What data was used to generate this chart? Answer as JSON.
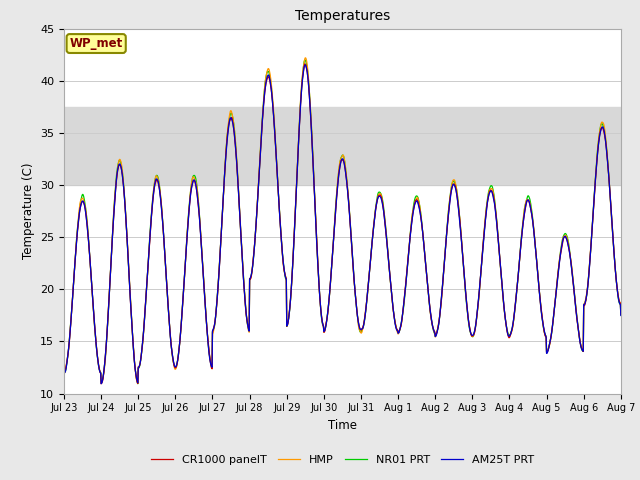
{
  "title": "Temperatures",
  "xlabel": "Time",
  "ylabel": "Temperature (C)",
  "ylim": [
    10,
    45
  ],
  "yticks": [
    10,
    15,
    20,
    25,
    30,
    35,
    40,
    45
  ],
  "series_colors": {
    "CR1000 panelT": "#cc0000",
    "HMP": "#ff9900",
    "NR01 PRT": "#00cc00",
    "AM25T PRT": "#0000cc"
  },
  "series_order": [
    "NR01 PRT",
    "HMP",
    "CR1000 panelT",
    "AM25T PRT"
  ],
  "annotation_text": "WP_met",
  "annotation_color": "#800000",
  "annotation_bg": "#ffff99",
  "shaded_band": [
    30,
    37.5
  ],
  "background_color": "#e8e8e8",
  "plot_bg": "#ffffff",
  "n_days": 16,
  "xtick_labels": [
    "Jul 23",
    "Jul 24",
    "Jul 25",
    "Jul 26",
    "Jul 27",
    "Jul 28",
    "Jul 29",
    "Jul 30",
    "Jul 31",
    "Aug 1",
    "Aug 2",
    "Aug 3",
    "Aug 4",
    "Aug 5",
    "Aug 6",
    "Aug 7"
  ],
  "daily_maxes": [
    28.5,
    32.0,
    30.5,
    30.5,
    36.5,
    40.5,
    41.5,
    32.5,
    29.0,
    28.5,
    30.0,
    29.5,
    28.5,
    25.0,
    35.5,
    18.5
  ],
  "daily_mins": [
    12.0,
    11.0,
    12.5,
    12.5,
    16.0,
    21.0,
    16.5,
    16.0,
    16.0,
    15.8,
    15.5,
    15.5,
    15.5,
    14.0,
    18.5,
    17.5
  ],
  "hmp_offsets": [
    2.0,
    2.5,
    2.0,
    2.0,
    3.0,
    4.0,
    4.5,
    3.0,
    1.5,
    1.5,
    2.0,
    1.5,
    1.5,
    1.5,
    3.0,
    0.5
  ],
  "nr01_offsets": [
    0.5,
    0.5,
    0.5,
    0.5,
    0.5,
    0.5,
    0.5,
    0.5,
    0.5,
    0.5,
    0.5,
    0.5,
    0.5,
    0.5,
    0.5,
    0.5
  ]
}
